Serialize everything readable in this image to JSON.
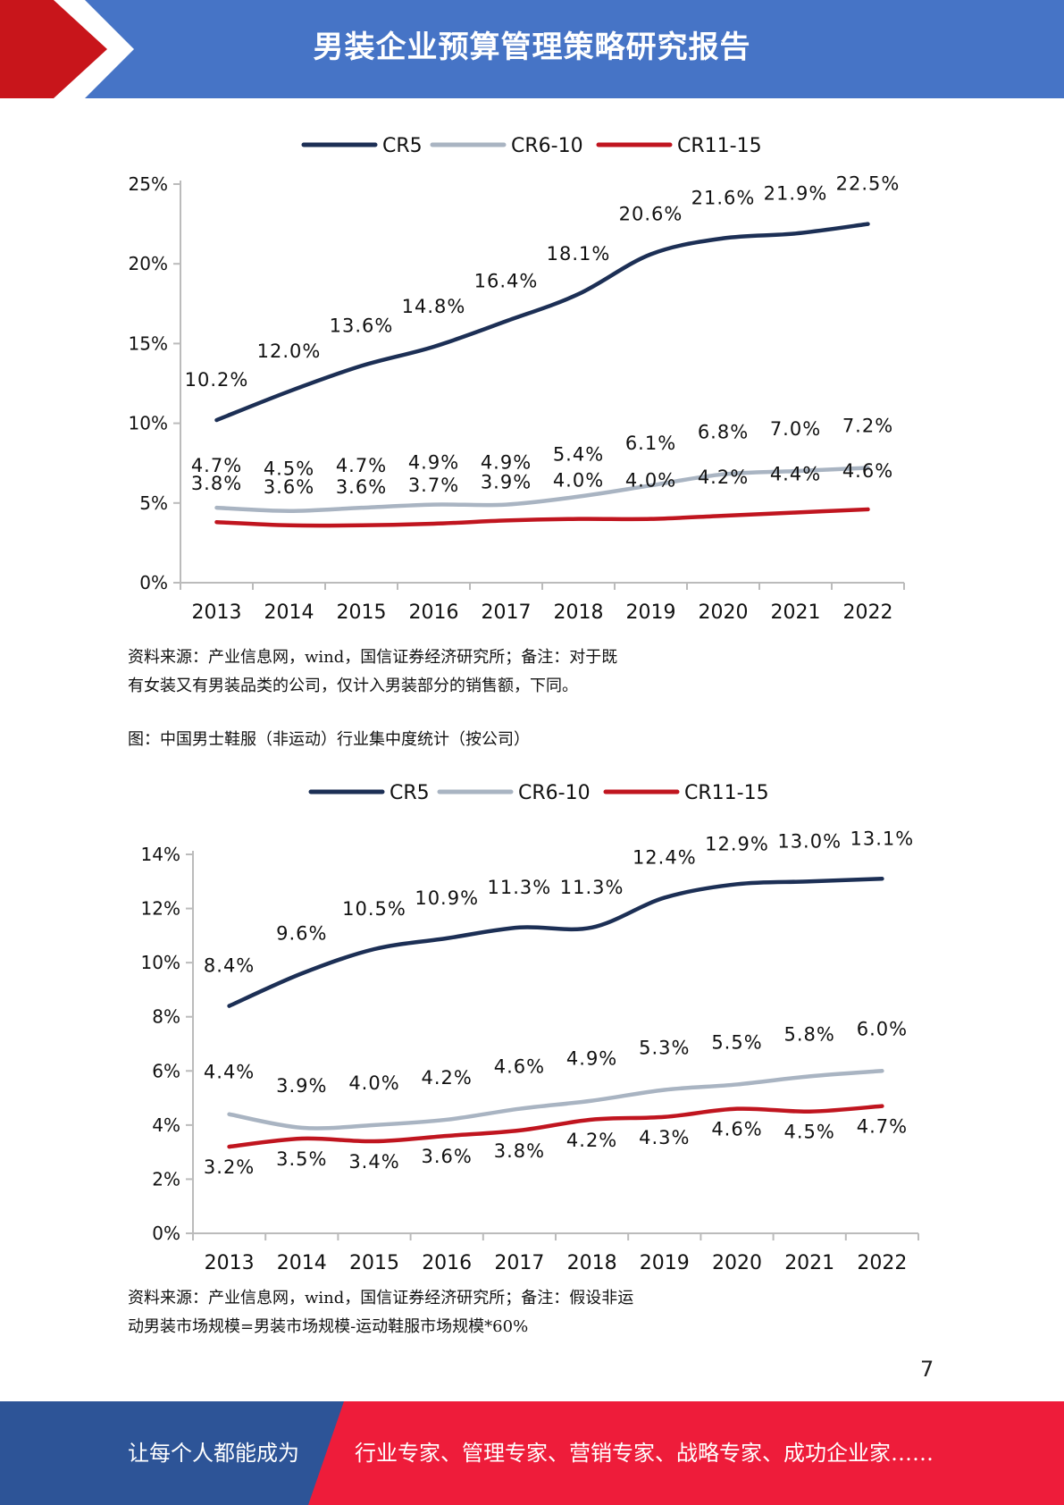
{
  "header": {
    "title": "男装企业预算管理策略研究报告",
    "band_color": "#4674c6",
    "arrow_color": "#c8151b"
  },
  "chart1_caption": {
    "line1": "资料来源：产业信息网，wind，国信证券经济研究所；备注：对于既",
    "line2": "有女装又有男装品类的公司，仅计入男装部分的销售额，下同。"
  },
  "chart2_title": "图：中国男士鞋服（非运动）行业集中度统计（按公司）",
  "chart2_caption": {
    "line1": "资料来源：产业信息网，wind，国信证券经济研究所；备注：假设非运",
    "line2": "动男装市场规模=男装市场规模-运动鞋服市场规模*60%"
  },
  "page_number": "7",
  "footer": {
    "left_text": "让每个人都能成为",
    "right_text": "行业专家、管理专家、营销专家、战略专家、成功企业家……",
    "left_color": "#2d5497",
    "right_color": "#ee1c3a"
  },
  "chart_data": [
    {
      "type": "line",
      "categories": [
        "2013",
        "2014",
        "2015",
        "2016",
        "2017",
        "2018",
        "2019",
        "2020",
        "2021",
        "2022"
      ],
      "ylim": [
        0,
        25
      ],
      "yticks": [
        "0%",
        "5%",
        "10%",
        "15%",
        "20%",
        "25%"
      ],
      "series": [
        {
          "name": "CR5",
          "color": "#1c2f55",
          "values": [
            10.2,
            12.0,
            13.6,
            14.8,
            16.4,
            18.1,
            20.6,
            21.6,
            21.9,
            22.5
          ],
          "labels": [
            "10.2%",
            "12.0%",
            "13.6%",
            "14.8%",
            "16.4%",
            "18.1%",
            "20.6%",
            "21.6%",
            "21.9%",
            "22.5%"
          ]
        },
        {
          "name": "CR6-10",
          "color": "#a9b4c2",
          "values": [
            4.7,
            4.5,
            4.7,
            4.9,
            4.9,
            5.4,
            6.1,
            6.8,
            7.0,
            7.2
          ],
          "labels": [
            "4.7%",
            "4.5%",
            "4.7%",
            "4.9%",
            "4.9%",
            "5.4%",
            "6.1%",
            "6.8%",
            "7.0%",
            "7.2%"
          ]
        },
        {
          "name": "CR11-15",
          "color": "#c0151f",
          "values": [
            3.8,
            3.6,
            3.6,
            3.7,
            3.9,
            4.0,
            4.0,
            4.2,
            4.4,
            4.6
          ],
          "labels": [
            "3.8%",
            "3.6%",
            "3.6%",
            "3.7%",
            "3.9%",
            "4.0%",
            "4.0%",
            "4.2%",
            "4.4%",
            "4.6%"
          ]
        }
      ],
      "legend": "top"
    },
    {
      "type": "line",
      "categories": [
        "2013",
        "2014",
        "2015",
        "2016",
        "2017",
        "2018",
        "2019",
        "2020",
        "2021",
        "2022"
      ],
      "ylim": [
        0,
        14
      ],
      "yticks": [
        "0%",
        "2%",
        "4%",
        "6%",
        "8%",
        "10%",
        "12%",
        "14%"
      ],
      "series": [
        {
          "name": "CR5",
          "color": "#1c2f55",
          "values": [
            8.4,
            9.6,
            10.5,
            10.9,
            11.3,
            11.3,
            12.4,
            12.9,
            13.0,
            13.1
          ],
          "labels": [
            "8.4%",
            "9.6%",
            "10.5%",
            "10.9%",
            "11.3%",
            "11.3%",
            "12.4%",
            "12.9%",
            "13.0%",
            "13.1%"
          ]
        },
        {
          "name": "CR6-10",
          "color": "#a9b4c2",
          "values": [
            4.4,
            3.9,
            4.0,
            4.2,
            4.6,
            4.9,
            5.3,
            5.5,
            5.8,
            6.0
          ],
          "labels": [
            "4.4%",
            "3.9%",
            "4.0%",
            "4.2%",
            "4.6%",
            "4.9%",
            "5.3%",
            "5.5%",
            "5.8%",
            "6.0%"
          ]
        },
        {
          "name": "CR11-15",
          "color": "#c0151f",
          "values": [
            3.2,
            3.5,
            3.4,
            3.6,
            3.8,
            4.2,
            4.3,
            4.6,
            4.5,
            4.7
          ],
          "labels": [
            "3.2%",
            "3.5%",
            "3.4%",
            "3.6%",
            "3.8%",
            "4.2%",
            "4.3%",
            "4.6%",
            "4.5%",
            "4.7%"
          ]
        }
      ],
      "legend": "top"
    }
  ]
}
